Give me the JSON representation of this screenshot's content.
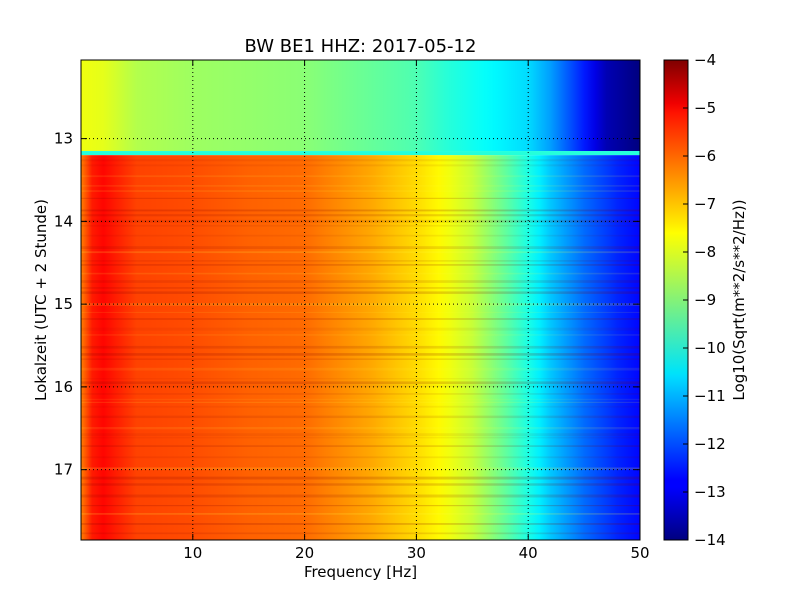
{
  "chart_data": {
    "type": "heatmap",
    "title": "BW BE1 HHZ: 2017-05-12",
    "xlabel": "Frequency [Hz]",
    "ylabel": "Lokalzeit (UTC + 2 Stunde)",
    "colorbar_label": "Log10(Sqrt(m**2/s**2/Hz))",
    "colormap": "jet",
    "xlim": [
      0,
      50
    ],
    "ylim": [
      12.05,
      17.85
    ],
    "y_inverted": true,
    "clim": [
      -14,
      -4
    ],
    "grid": true,
    "x_ticks": [
      10,
      20,
      30,
      40,
      50
    ],
    "x_tick_labels": [
      "10",
      "20",
      "30",
      "40",
      "50"
    ],
    "y_ticks": [
      13,
      14,
      15,
      16,
      17
    ],
    "y_tick_labels": [
      "13",
      "14",
      "15",
      "16",
      "17"
    ],
    "colorbar_ticks": [
      -4,
      -5,
      -6,
      -7,
      -8,
      -9,
      -10,
      -11,
      -12,
      -13,
      -14
    ],
    "colorbar_tick_labels": [
      "−4",
      "−5",
      "−6",
      "−7",
      "−8",
      "−9",
      "−10",
      "−11",
      "−12",
      "−13",
      "−14"
    ],
    "segments": [
      {
        "time_range": [
          12.05,
          13.15
        ],
        "spectrum_freq": [
          0,
          2,
          5,
          10,
          20,
          30,
          33,
          36,
          40,
          42,
          45,
          47,
          50
        ],
        "spectrum_value": [
          -7.9,
          -8.0,
          -8.5,
          -8.7,
          -8.9,
          -9.5,
          -9.9,
          -10.2,
          -10.6,
          -11.2,
          -12.5,
          -13.5,
          -14.0
        ]
      },
      {
        "time_range": [
          13.15,
          13.2
        ],
        "spectrum_freq": [
          0,
          50
        ],
        "spectrum_value": [
          -9.9,
          -9.9
        ]
      },
      {
        "time_range": [
          13.2,
          17.85
        ],
        "spectrum_freq": [
          0,
          1,
          2,
          5,
          10,
          15,
          20,
          23,
          26,
          30,
          32,
          35,
          38,
          40,
          42,
          45,
          48,
          50
        ],
        "spectrum_value": [
          -6.5,
          -5.5,
          -5.3,
          -5.9,
          -6.0,
          -6.2,
          -6.3,
          -6.6,
          -6.9,
          -7.4,
          -7.7,
          -8.3,
          -9.3,
          -10.0,
          -10.8,
          -11.7,
          -12.4,
          -12.7
        ]
      }
    ]
  }
}
